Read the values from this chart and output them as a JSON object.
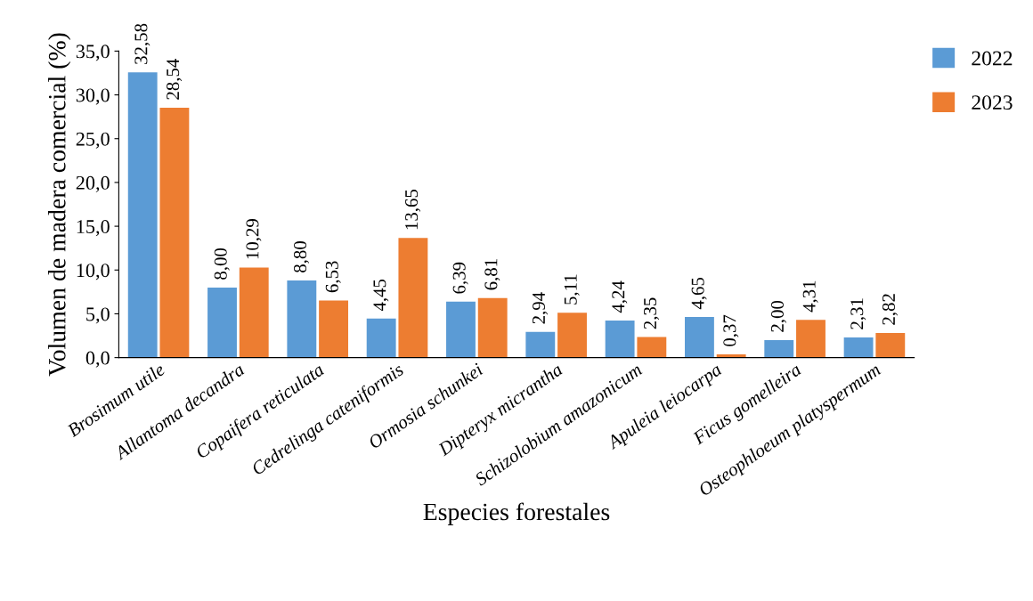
{
  "chart_data": {
    "type": "bar",
    "xlabel": "Especies forestales",
    "ylabel": "Volumen de madera comercial (%)",
    "categories": [
      "Brosimum utile",
      "Allantoma decandra",
      "Copaifera reticulata",
      "Cedrelinga cateniformis",
      "Ormosia schunkei",
      "Dipteryx micrantha",
      "Schizolobium amazonicum",
      "Apuleia leiocarpa",
      "Ficus gomelleira",
      "Osteophloeum platyspermum"
    ],
    "series": [
      {
        "name": "2022",
        "color": "#5b9bd5",
        "values": [
          32.58,
          8.0,
          8.8,
          4.45,
          6.39,
          2.94,
          4.24,
          4.65,
          2.0,
          2.31
        ],
        "value_labels": [
          "32,58",
          "8,00",
          "8,80",
          "4,45",
          "6,39",
          "2,94",
          "4,24",
          "4,65",
          "2,00",
          "2,31"
        ]
      },
      {
        "name": "2023",
        "color": "#ed7d31",
        "values": [
          28.54,
          10.29,
          6.53,
          13.65,
          6.81,
          5.11,
          2.35,
          0.37,
          4.31,
          2.82
        ],
        "value_labels": [
          "28,54",
          "10,29",
          "6,53",
          "13,65",
          "6,81",
          "5,11",
          "2,35",
          "0,37",
          "4,31",
          "2,82"
        ]
      }
    ],
    "ylim": [
      0,
      35
    ],
    "yticks": [
      {
        "value": 0,
        "label": "0,0"
      },
      {
        "value": 5,
        "label": "5,0"
      },
      {
        "value": 10,
        "label": "10,0"
      },
      {
        "value": 15,
        "label": "15,0"
      },
      {
        "value": 20,
        "label": "20,0"
      },
      {
        "value": 25,
        "label": "25,0"
      },
      {
        "value": 30,
        "label": "30,0"
      },
      {
        "value": 35,
        "label": "35,0"
      }
    ],
    "grid": false,
    "legend": "top right"
  }
}
